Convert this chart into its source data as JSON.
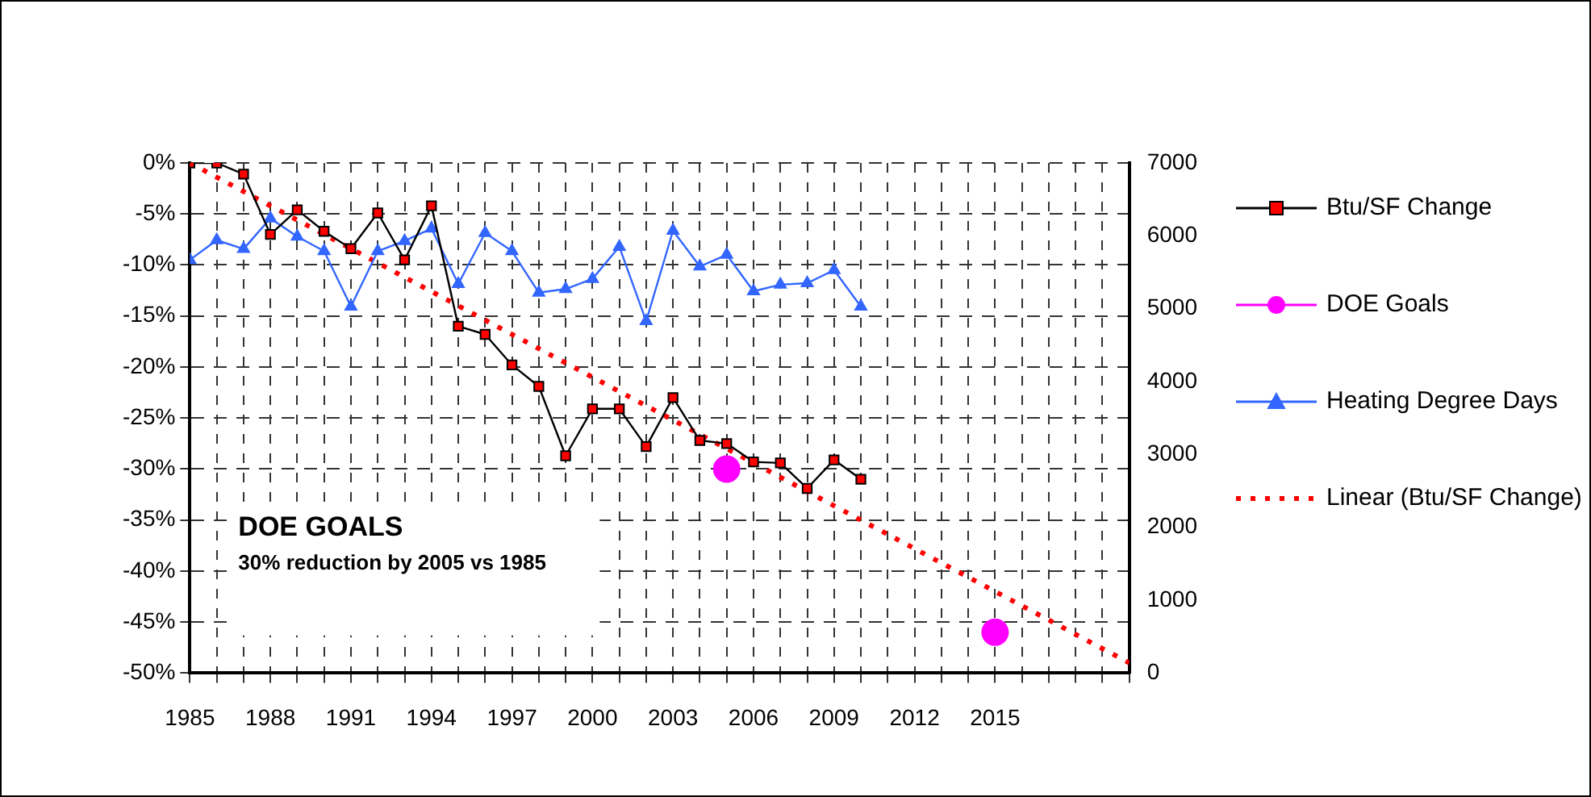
{
  "chart_data": {
    "type": "line",
    "xlabel": null,
    "x": [
      1985,
      1986,
      1987,
      1988,
      1989,
      1990,
      1991,
      1992,
      1993,
      1994,
      1995,
      1996,
      1997,
      1998,
      1999,
      2000,
      2001,
      2002,
      2003,
      2004,
      2005,
      2006,
      2007,
      2008,
      2009,
      2010
    ],
    "series": [
      {
        "name": "Btu/SF Change",
        "color": "#000000",
        "colors": [
          "#ff0000",
          "#ff0000",
          "#ff0000",
          "#ff0000",
          "#ff0000",
          "#ff0000",
          "#ff0000",
          "#ff0000",
          "#ff0000",
          "#ff0000",
          "#ff0000",
          "#ff0000",
          "#ff0000",
          "#ff0000",
          "#ff0000",
          "#ff0000",
          "#ff0000",
          "#ff0000",
          "#ff0000",
          "#ff0000",
          "#ff0000",
          "#ff0000",
          "#ff0000",
          "#ff0000",
          "#ff0000",
          "#ff0000"
        ],
        "marker": "square",
        "values": [
          0,
          0,
          -1.1,
          -7.0,
          -4.6,
          -6.7,
          -8.4,
          -4.9,
          -9.5,
          -4.2,
          -16.0,
          -16.8,
          -19.8,
          -21.9,
          -28.7,
          -24.1,
          -24.1,
          -27.8,
          -23.0,
          -27.2,
          -27.5,
          -29.3,
          -29.4,
          -31.9,
          -29.1,
          -31.0
        ]
      },
      {
        "name": "DOE Goals",
        "type": "scatter",
        "color": "#ff00ff",
        "marker": "circle",
        "x": [
          2005,
          2015
        ],
        "values": [
          -30,
          -46
        ]
      },
      {
        "name": "Heating Degree Days",
        "axis": "y2",
        "color": "#3366ff",
        "marker": "triangle",
        "values": [
          5670,
          5940,
          5820,
          6240,
          5990,
          5790,
          5030,
          5790,
          5930,
          6100,
          5340,
          6040,
          5790,
          5220,
          5270,
          5410,
          5850,
          4830,
          6070,
          5580,
          5740,
          5240,
          5330,
          5350,
          5530,
          5030
        ]
      },
      {
        "name": "Linear (Btu/SF Change)",
        "color": "#ff0000",
        "marker": "none",
        "line_style": "dotted",
        "x": [
          1985,
          2020
        ],
        "values": [
          0,
          -49
        ]
      }
    ],
    "xlim": [
      1985,
      2020
    ],
    "xticks": [
      1985,
      {
        "value": 1986,
        "label": null
      },
      {
        "value": 1987,
        "label": null
      },
      1988,
      {
        "value": 1989,
        "label": null
      },
      {
        "value": 1990,
        "label": null
      },
      1991,
      {
        "value": 1992,
        "label": null
      },
      {
        "value": 1993,
        "label": null
      },
      1994,
      {
        "value": 1995,
        "label": null
      },
      {
        "value": 1996,
        "label": null
      },
      1997,
      {
        "value": 1998,
        "label": null
      },
      {
        "value": 1999,
        "label": null
      },
      2000,
      {
        "value": 2001,
        "label": null
      },
      {
        "value": 2002,
        "label": null
      },
      2003,
      {
        "value": 2004,
        "label": null
      },
      {
        "value": 2005,
        "label": null
      },
      2006,
      {
        "value": 2007,
        "label": null
      },
      {
        "value": 2008,
        "label": null
      },
      2009,
      {
        "value": 2010,
        "label": null
      },
      {
        "value": 2011,
        "label": null
      },
      2012,
      {
        "value": 2013,
        "label": null
      },
      {
        "value": 2014,
        "label": null
      },
      2015,
      {
        "value": 2016,
        "label": null
      },
      {
        "value": 2017,
        "label": null
      },
      {
        "value": 2018,
        "label": null
      },
      {
        "value": 2019,
        "label": null
      },
      {
        "value": 2020,
        "label": null
      }
    ],
    "ylim": [
      -50,
      0
    ],
    "yticks": [
      {
        "value": 0,
        "label": "0%"
      },
      {
        "value": -5,
        "label": "-5%"
      },
      {
        "value": -10,
        "label": "-10%"
      },
      {
        "value": -15,
        "label": "-15%"
      },
      {
        "value": -20,
        "label": "-20%"
      },
      {
        "value": -25,
        "label": "-25%"
      },
      {
        "value": -30,
        "label": "-30%"
      },
      {
        "value": -35,
        "label": "-35%"
      },
      {
        "value": -40,
        "label": "-40%"
      },
      {
        "value": -45,
        "label": "-45%"
      },
      {
        "value": -50,
        "label": "-50%"
      }
    ],
    "y2lim": [
      0,
      7000
    ],
    "y2ticks": [
      0,
      1000,
      2000,
      3000,
      4000,
      5000,
      6000,
      7000
    ],
    "grid": true,
    "legend": "right",
    "annotations": [
      "DOE GOALS",
      "30% reduction by 2005 vs 1985"
    ]
  }
}
